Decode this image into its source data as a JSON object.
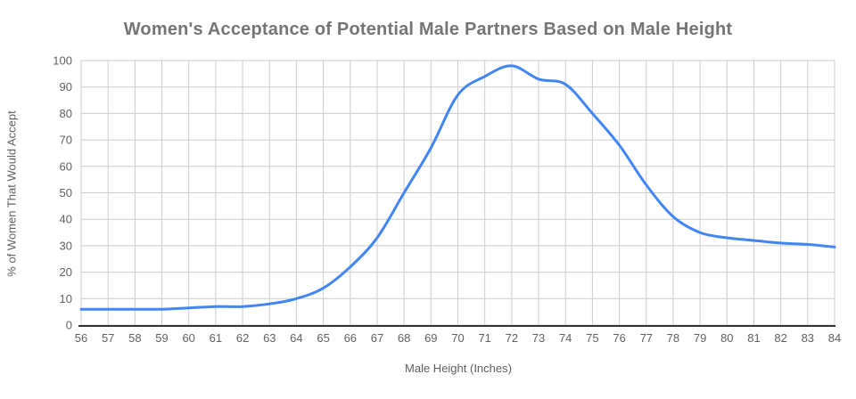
{
  "title": "Women's Acceptance of Potential Male Partners Based on Male Height",
  "colors": {
    "line": "#4285f4",
    "grid": "#cccccc",
    "axis_line": "#333333",
    "tick_text": "#616161",
    "title_text": "#757575",
    "axis_title_text": "#5f5f5f",
    "background": "#ffffff"
  },
  "chart_data": {
    "type": "line",
    "title": "Women's Acceptance of Potential Male Partners Based on Male Height",
    "xlabel": "Male Height (Inches)",
    "ylabel": "% of Women That Would Accept",
    "x": [
      56,
      57,
      58,
      59,
      60,
      61,
      62,
      63,
      64,
      65,
      66,
      67,
      68,
      69,
      70,
      71,
      72,
      73,
      74,
      75,
      76,
      77,
      78,
      79,
      80,
      81,
      82,
      83,
      84
    ],
    "values": [
      6,
      6,
      6,
      6,
      6.5,
      7,
      7,
      8,
      10,
      14,
      22,
      33,
      50,
      67,
      87,
      94,
      98,
      93,
      91,
      80,
      68,
      53,
      41,
      35,
      33,
      32,
      31,
      30.5,
      29.5
    ],
    "x_tick_labels": [
      "56",
      "57",
      "58",
      "59",
      "60",
      "61",
      "62",
      "63",
      "64",
      "65",
      "66",
      "67",
      "68",
      "69",
      "70",
      "71",
      "72",
      "73",
      "74",
      "75",
      "76",
      "77",
      "78",
      "79",
      "80",
      "81",
      "82",
      "83",
      "84"
    ],
    "y_ticks": [
      0,
      10,
      20,
      30,
      40,
      50,
      60,
      70,
      80,
      90,
      100
    ],
    "xlim": [
      56,
      84
    ],
    "ylim": [
      0,
      100
    ],
    "grid": true,
    "legend": "none",
    "series_name": "acceptance-percentage"
  }
}
